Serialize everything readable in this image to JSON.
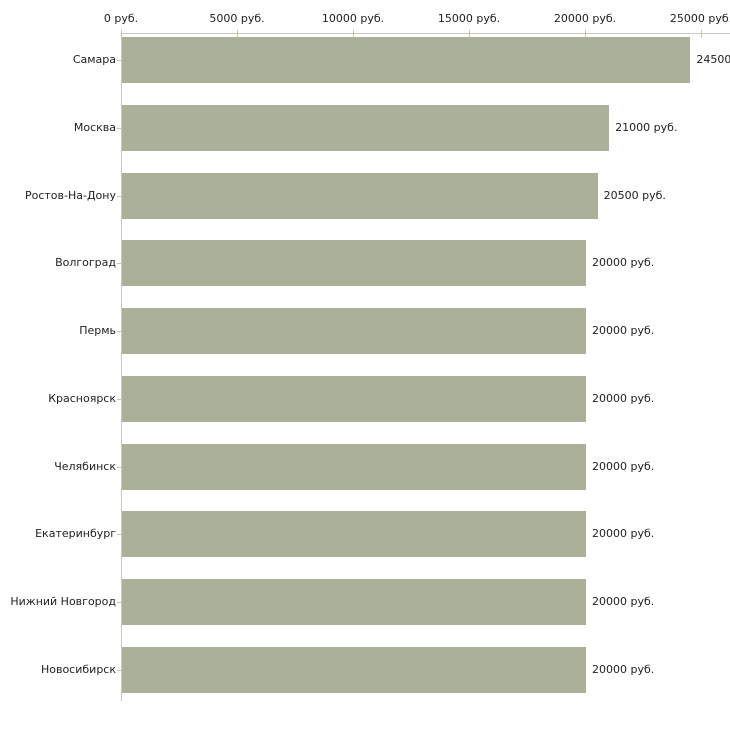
{
  "chart_data": {
    "type": "bar",
    "orientation": "horizontal",
    "title": "",
    "xlabel": "",
    "ylabel": "",
    "currency_suffix": "руб.",
    "categories": [
      "Самара",
      "Москва",
      "Ростов-На-Дону",
      "Волгоград",
      "Пермь",
      "Красноярск",
      "Челябинск",
      "Екатеринбург",
      "Нижний Новгород",
      "Новосибирск"
    ],
    "values": [
      24500,
      21000,
      20500,
      20000,
      20000,
      20000,
      20000,
      20000,
      20000,
      20000
    ],
    "value_labels": [
      "24500",
      "21000 руб.",
      "20500 руб.",
      "20000 руб.",
      "20000 руб.",
      "20000 руб.",
      "20000 руб.",
      "20000 руб.",
      "20000 руб.",
      "20000 руб."
    ],
    "x_axis": {
      "position": "top",
      "min": 0,
      "max": 25000,
      "ticks": [
        0,
        5000,
        10000,
        15000,
        20000,
        25000
      ],
      "tick_labels": [
        "0 руб.",
        "5000 руб.",
        "10000 руб.",
        "15000 руб.",
        "20000 руб.",
        "25000 руб."
      ]
    },
    "legend": "none",
    "grid": "off",
    "colors": {
      "bar_fill": "#aab198",
      "axis_line": "#c9c9c2",
      "tick_mark": "#cdc8a2",
      "text": "#1f1f1f",
      "background": "#ffffff"
    }
  }
}
